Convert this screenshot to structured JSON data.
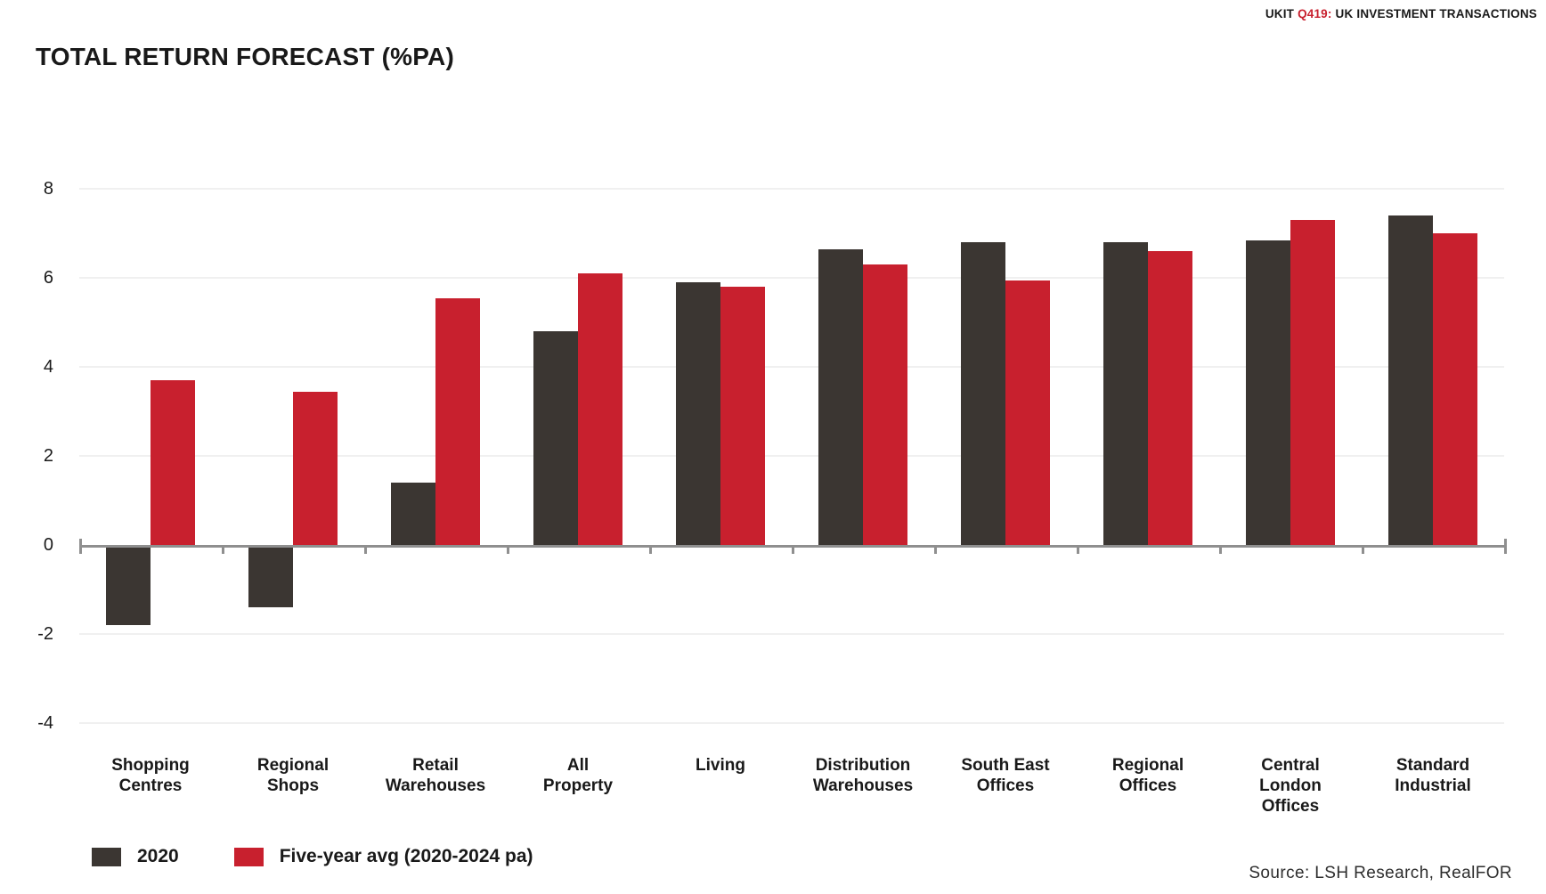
{
  "header": {
    "prefix": "UKIT ",
    "tag": "Q419:",
    "suffix": " UK INVESTMENT TRANSACTIONS"
  },
  "title": "TOTAL RETURN FORECAST (%PA)",
  "source": "Source: LSH Research, RealFOR",
  "colors": {
    "series_2020": "#3B3632",
    "series_avg": "#C8202E",
    "axis": "#8F8F8F",
    "grid": "#F0F0F0",
    "accent_red": "#C8202E",
    "text": "#191919"
  },
  "legend": {
    "items": [
      {
        "label": "2020",
        "color": "#3B3632"
      },
      {
        "label": "Five-year avg (2020-2024 pa)",
        "color": "#C8202E"
      }
    ]
  },
  "chart_data": {
    "type": "bar",
    "title": "TOTAL RETURN FORECAST (%PA)",
    "categories": [
      "Shopping Centres",
      "Regional Shops",
      "Retail Warehouses",
      "All Property",
      "Living",
      "Distribution Warehouses",
      "South East Offices",
      "Regional Offices",
      "Central London Offices",
      "Standard Industrial"
    ],
    "category_label_lines": [
      [
        "Shopping",
        "Centres"
      ],
      [
        "Regional",
        "Shops"
      ],
      [
        "Retail",
        "Warehouses"
      ],
      [
        "All",
        "Property"
      ],
      [
        "Living"
      ],
      [
        "Distribution",
        "Warehouses"
      ],
      [
        "South East",
        "Offices"
      ],
      [
        "Regional",
        "Offices"
      ],
      [
        "Central",
        "London",
        "Offices"
      ],
      [
        "Standard",
        "Industrial"
      ]
    ],
    "series": [
      {
        "name": "2020",
        "color": "#3B3632",
        "values": [
          -1.8,
          -1.4,
          1.4,
          4.8,
          5.9,
          6.65,
          6.8,
          6.8,
          6.85,
          7.4
        ]
      },
      {
        "name": "Five-year avg (2020-2024 pa)",
        "color": "#C8202E",
        "values": [
          3.7,
          3.45,
          5.55,
          6.1,
          5.8,
          6.3,
          5.95,
          6.6,
          7.3,
          7.0
        ]
      }
    ],
    "xlabel": "",
    "ylabel": "",
    "ylim": [
      -4,
      8
    ],
    "yticks": [
      8,
      6,
      4,
      2,
      0,
      -2,
      -4
    ],
    "grid": true,
    "legend_position": "bottom-left"
  }
}
